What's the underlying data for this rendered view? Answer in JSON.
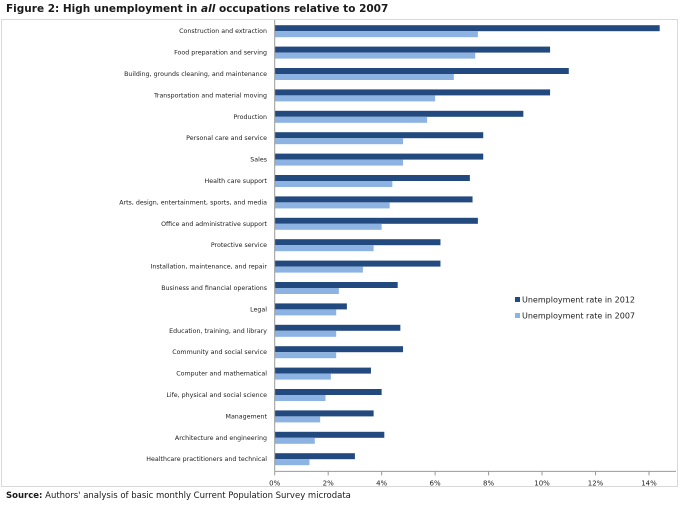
{
  "title_prefix": "Figure 2: High unemployment in ",
  "title_emphasis": "all",
  "title_suffix": " occupations relative to 2007",
  "source_label": "Source:",
  "source_text": " Authors' analysis of basic monthly Current Population Survey microdata",
  "colors": {
    "series_2012": "#234a7e",
    "series_2007": "#8db3e2"
  },
  "chart_data": {
    "type": "bar",
    "orientation": "horizontal",
    "title": "Figure 2: High unemployment in all occupations relative to 2007",
    "xlim": [
      0,
      14
    ],
    "x_ticks": [
      "0%",
      "2%",
      "4%",
      "6%",
      "8%",
      "10%",
      "12%",
      "14%"
    ],
    "grid": false,
    "legend_position": "right",
    "categories": [
      "Construction and extraction",
      "Food preparation and serving",
      "Building, grounds cleaning, and maintenance",
      "Transportation and material moving",
      "Production",
      "Personal care and service",
      "Sales",
      "Health care support",
      "Arts, design, entertainment, sports, and media",
      "Office and administrative support",
      "Protective service",
      "Installation, maintenance, and repair",
      "Business and financial operations",
      "Legal",
      "Education, training, and library",
      "Community and social service",
      "Computer and mathematical",
      "Life, physical and social science",
      "Management",
      "Architecture and engineering",
      "Healthcare practitioners and technical"
    ],
    "series": [
      {
        "name": "Unemployment rate in 2012",
        "values": [
          14.4,
          10.3,
          11.0,
          10.3,
          9.3,
          7.8,
          7.8,
          7.3,
          7.4,
          7.6,
          6.2,
          6.2,
          4.6,
          2.7,
          4.7,
          4.8,
          3.6,
          4.0,
          3.7,
          4.1,
          3.0
        ]
      },
      {
        "name": "Unemployment rate in 2007",
        "values": [
          7.6,
          7.5,
          6.7,
          6.0,
          5.7,
          4.8,
          4.8,
          4.4,
          4.3,
          4.0,
          3.7,
          3.3,
          2.4,
          2.3,
          2.3,
          2.3,
          2.1,
          1.9,
          1.7,
          1.5,
          1.3
        ]
      }
    ]
  }
}
